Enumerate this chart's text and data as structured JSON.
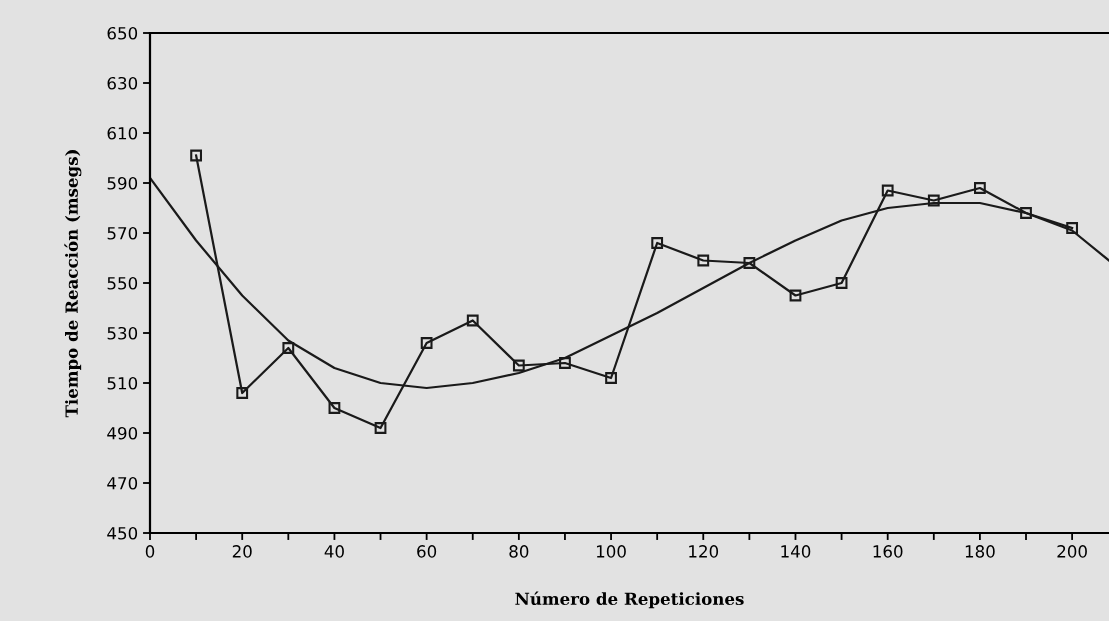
{
  "chart_data": {
    "type": "line",
    "xlabel": "Número de Repeticiones",
    "ylabel": "Tiempo de Reacción (msegs)",
    "xlim": [
      0,
      208
    ],
    "ylim": [
      450,
      650
    ],
    "xticks": [
      0,
      {
        "value": 10,
        "label": null
      },
      20,
      {
        "value": 30,
        "label": null
      },
      40,
      {
        "value": 50,
        "label": null
      },
      60,
      {
        "value": 70,
        "label": null
      },
      80,
      {
        "value": 90,
        "label": null
      },
      100,
      {
        "value": 110,
        "label": null
      },
      120,
      {
        "value": 130,
        "label": null
      },
      140,
      {
        "value": 150,
        "label": null
      },
      160,
      {
        "value": 170,
        "label": null
      },
      180,
      {
        "value": 190,
        "label": null
      },
      200
    ],
    "yticks": [
      450,
      470,
      490,
      510,
      530,
      550,
      570,
      590,
      610,
      630,
      650
    ],
    "grid": false,
    "line_style": "solid",
    "series": [
      {
        "color": "#1a1a1a",
        "marker": "square",
        "x": [
          10,
          20,
          30,
          40,
          50,
          60,
          70,
          80,
          90,
          100,
          110,
          120,
          130,
          140,
          150,
          160,
          170,
          180,
          190,
          200
        ],
        "values": [
          601,
          506,
          524,
          500,
          492,
          526,
          535,
          517,
          518,
          512,
          566,
          559,
          558,
          545,
          550,
          587,
          583,
          588,
          578,
          572
        ]
      },
      {
        "color": "#1a1a1a",
        "marker": "none",
        "x": [
          0,
          10,
          20,
          30,
          40,
          50,
          60,
          70,
          80,
          90,
          100,
          110,
          120,
          130,
          140,
          150,
          160,
          170,
          180,
          190,
          200,
          208
        ],
        "values": [
          592,
          567,
          545,
          527,
          516,
          510,
          508,
          510,
          514,
          520,
          529,
          538,
          548,
          558,
          567,
          575,
          580,
          582,
          582,
          578,
          571,
          559
        ]
      }
    ]
  }
}
